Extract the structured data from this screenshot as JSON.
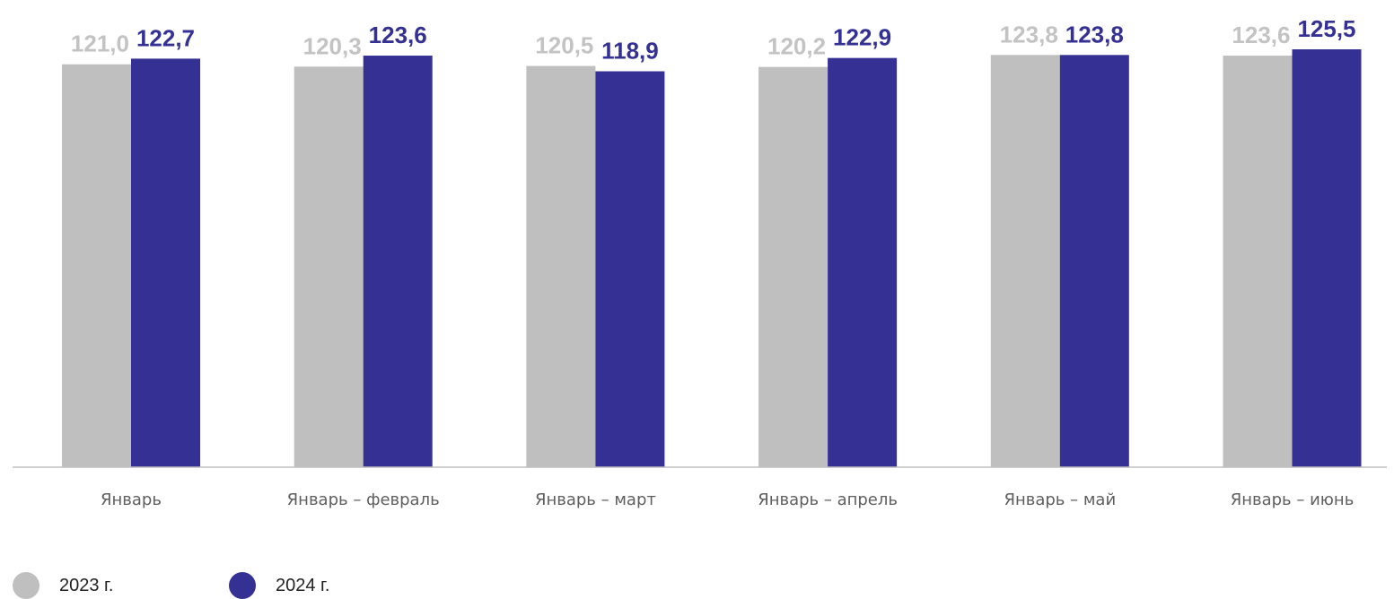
{
  "chart_data": {
    "type": "bar",
    "categories": [
      "Январь",
      "Январь – февраль",
      "Январь – март",
      "Январь – апрель",
      "Январь – май",
      "Январь – июнь"
    ],
    "series": [
      {
        "name": "2023 г.",
        "values": [
          121.0,
          120.3,
          120.5,
          120.2,
          123.8,
          123.6
        ],
        "labels": [
          "121,0",
          "120,3",
          "120,5",
          "120,2",
          "123,8",
          "123,6"
        ],
        "color": "#bfbfbf"
      },
      {
        "name": "2024 г.",
        "values": [
          122.7,
          123.6,
          118.9,
          122.9,
          123.8,
          125.5
        ],
        "labels": [
          "122,7",
          "123,6",
          "118,9",
          "122,9",
          "123,8",
          "125,5"
        ],
        "color": "#343094"
      }
    ],
    "title": "",
    "xlabel": "",
    "ylabel": "",
    "ylim": [
      0,
      125.5
    ],
    "grid": false,
    "legend": "bottom-left"
  }
}
